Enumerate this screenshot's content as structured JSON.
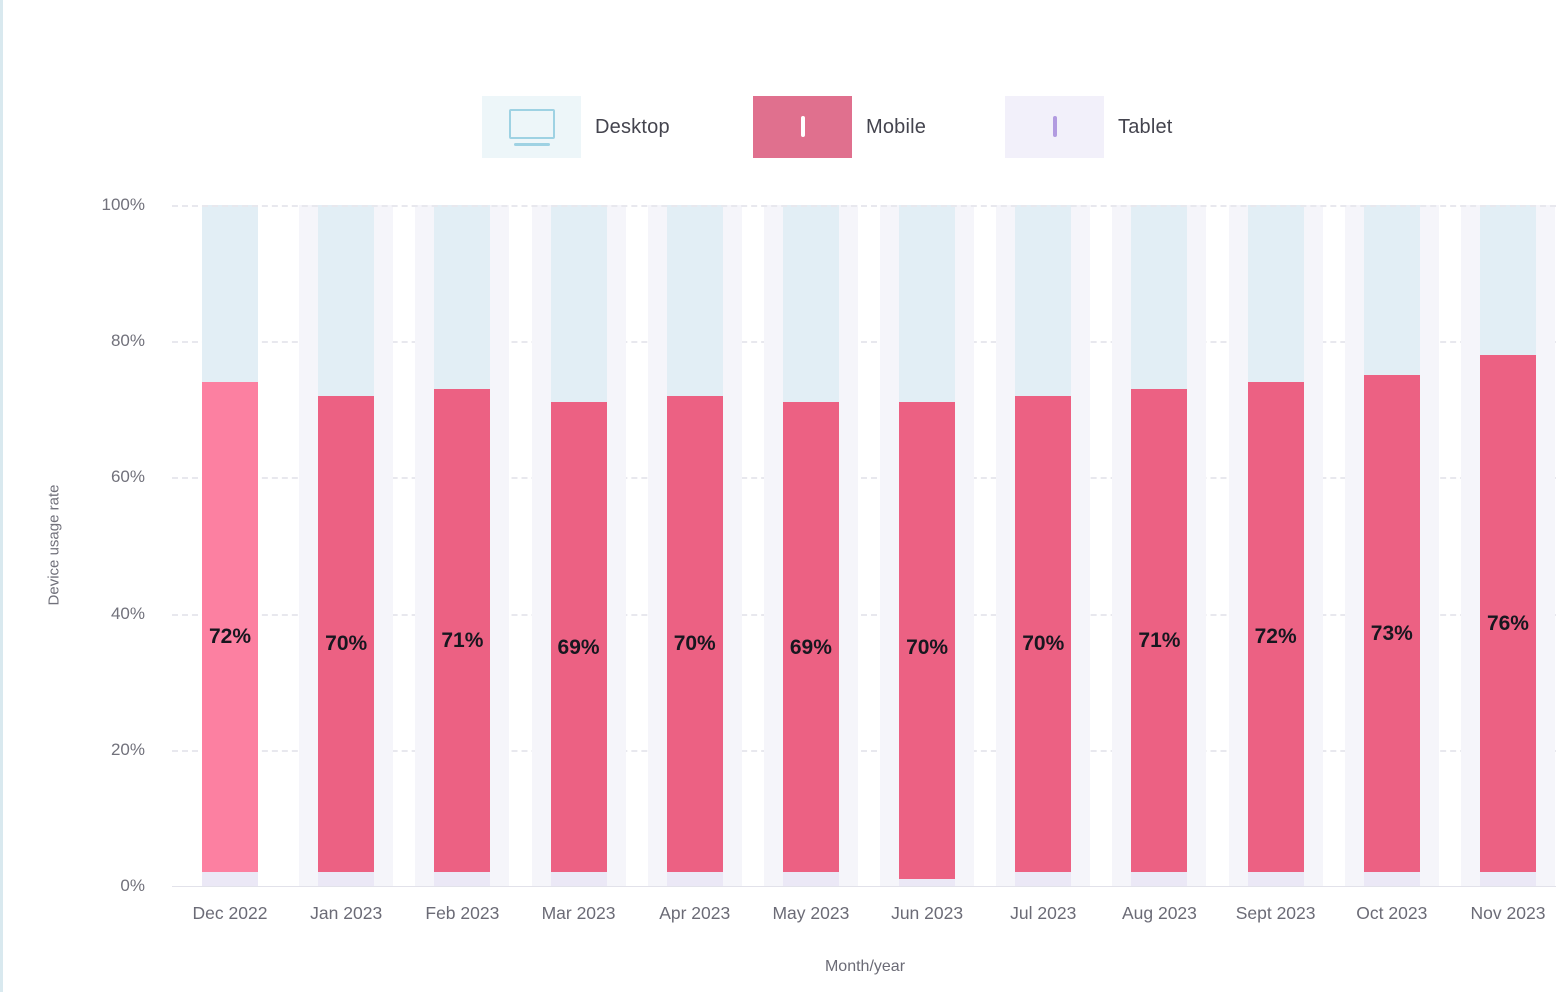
{
  "legend": {
    "items": [
      {
        "id": "desktop",
        "label": "Desktop",
        "chip_bg": "#edf6f9",
        "icon": "monitor-icon",
        "icon_color": "#9ed2e3"
      },
      {
        "id": "mobile",
        "label": "Mobile",
        "chip_bg": "#e0708e",
        "icon": "smartphone-icon",
        "icon_color": "#ffffff"
      },
      {
        "id": "tablet",
        "label": "Tablet",
        "chip_bg": "#f2f0fa",
        "icon": "tablet-icon",
        "icon_color": "#b29be0"
      }
    ]
  },
  "chart_data": {
    "type": "bar",
    "stacked": true,
    "title": "",
    "xlabel": "Month/year",
    "ylabel": "Device usage rate",
    "ylim": [
      0,
      100
    ],
    "y_ticks": [
      "0%",
      "20%",
      "40%",
      "60%",
      "80%",
      "100%"
    ],
    "grid": "horizontal-dashed",
    "legend_position": "top",
    "categories": [
      "Dec 2022",
      "Jan 2023",
      "Feb 2023",
      "Mar 2023",
      "Apr 2023",
      "May 2023",
      "Jun 2023",
      "Jul 2023",
      "Aug 2023",
      "Sept 2023",
      "Oct 2023",
      "Nov 2023"
    ],
    "series": [
      {
        "name": "Tablet",
        "color": "#ebe8f6",
        "values": [
          2,
          2,
          2,
          2,
          2,
          2,
          1,
          2,
          2,
          2,
          2,
          2
        ]
      },
      {
        "name": "Mobile",
        "color": "#ec6183",
        "values": [
          72,
          70,
          71,
          69,
          70,
          69,
          70,
          70,
          71,
          72,
          73,
          76
        ],
        "data_labels": [
          "72%",
          "70%",
          "71%",
          "69%",
          "70%",
          "69%",
          "70%",
          "70%",
          "71%",
          "72%",
          "73%",
          "76%"
        ]
      },
      {
        "name": "Desktop",
        "color": "#e2eef5",
        "values": [
          26,
          28,
          27,
          29,
          28,
          29,
          29,
          28,
          27,
          26,
          25,
          22
        ]
      }
    ],
    "highlighted_category_index": 0,
    "highlight_color": "#fc80a1",
    "column_band_color": "#f5f5fa"
  }
}
